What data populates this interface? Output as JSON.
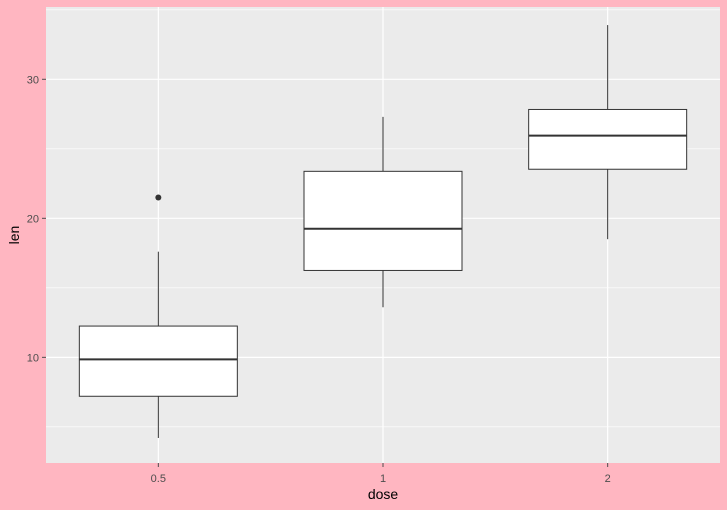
{
  "chart_data": {
    "type": "boxplot",
    "title": "",
    "xlabel": "dose",
    "ylabel": "len",
    "categories": [
      "0.5",
      "1",
      "2"
    ],
    "ylim": [
      2.4,
      35.2
    ],
    "y_ticks": [
      10,
      20,
      30
    ],
    "y_tick_labels": [
      "10",
      "20",
      "30"
    ],
    "grid": true,
    "legend": "none",
    "boxes": [
      {
        "category": "0.5",
        "min": 4.2,
        "q1": 7.2,
        "median": 9.85,
        "q3": 12.25,
        "max": 17.6,
        "outliers": [
          21.5
        ]
      },
      {
        "category": "1",
        "min": 13.6,
        "q1": 16.25,
        "median": 19.25,
        "q3": 23.38,
        "max": 27.3,
        "outliers": []
      },
      {
        "category": "2",
        "min": 18.5,
        "q1": 23.53,
        "median": 25.95,
        "q3": 27.83,
        "max": 33.9,
        "outliers": []
      }
    ],
    "colors": {
      "background": "#FFB6C1",
      "panel": "#EBEBEB",
      "grid": "#FFFFFF",
      "box_fill": "#FFFFFF",
      "box_line": "#333333",
      "axis_text": "#4D4D4D",
      "title_text": "#000000"
    }
  }
}
